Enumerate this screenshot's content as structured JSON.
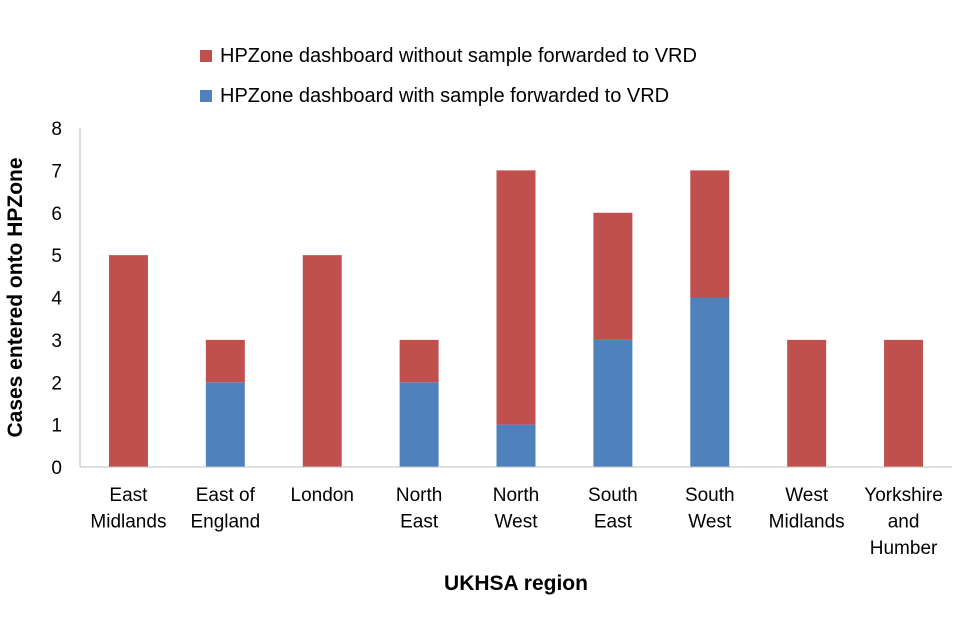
{
  "chart_data": {
    "type": "bar",
    "stacked": true,
    "title": "",
    "xlabel": "UKHSA region",
    "ylabel": "Cases entered onto HPZone",
    "ylim": [
      0,
      8
    ],
    "yticks": [
      "0",
      "1",
      "2",
      "3",
      "4",
      "5",
      "6",
      "7",
      "8"
    ],
    "grid": false,
    "legend_position": "top",
    "categories": [
      [
        "East",
        "Midlands"
      ],
      [
        "East of",
        "England"
      ],
      [
        "London"
      ],
      [
        "North",
        "East"
      ],
      [
        "North",
        "West"
      ],
      [
        "South",
        "East"
      ],
      [
        "South",
        "West"
      ],
      [
        "West",
        "Midlands"
      ],
      [
        "Yorkshire",
        "and",
        "Humber"
      ]
    ],
    "series": [
      {
        "name": "HPZone dashboard with sample forwarded to VRD",
        "color": "#4f81bd",
        "values": [
          0,
          2,
          0,
          2,
          1,
          3,
          4,
          0,
          0
        ]
      },
      {
        "name": "HPZone dashboard without sample forwarded to VRD",
        "color": "#c0504d",
        "values": [
          5,
          1,
          5,
          1,
          6,
          3,
          3,
          3,
          3
        ]
      }
    ]
  }
}
